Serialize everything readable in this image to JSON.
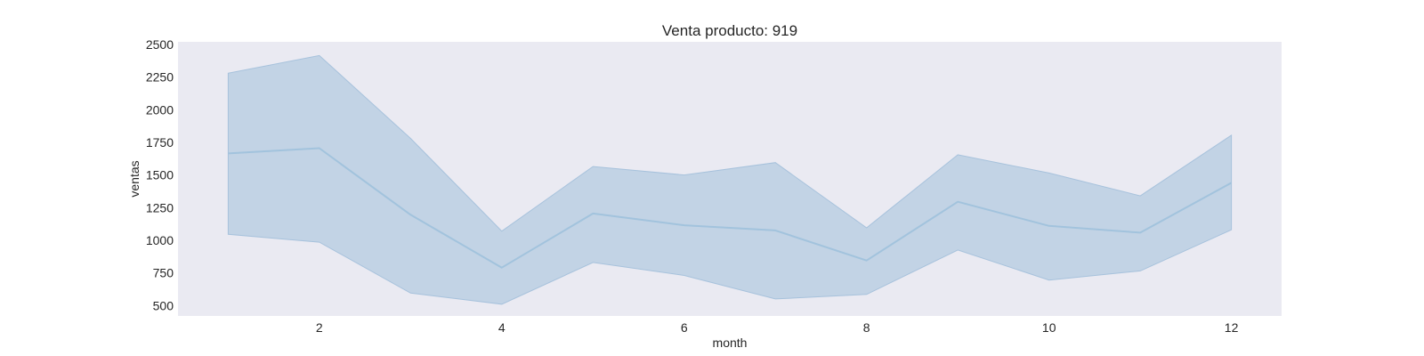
{
  "chart_data": {
    "type": "line",
    "title": "Venta producto: 919",
    "xlabel": "month",
    "ylabel": "ventas",
    "xlim": [
      0.45,
      12.55
    ],
    "ylim": [
      420,
      2520
    ],
    "xticks": [
      2,
      4,
      6,
      8,
      10,
      12
    ],
    "yticks": [
      500,
      750,
      1000,
      1250,
      1500,
      1750,
      2000,
      2250,
      2500
    ],
    "grid": false,
    "colors": {
      "plot_background": "#eaeaf2",
      "line": "#a2c3dd",
      "band_fill": "#c2d3e5",
      "band_edge": "#a7c2dc"
    },
    "series": [
      {
        "x": [
          1,
          2,
          3,
          4,
          5,
          6,
          7,
          8,
          9,
          10,
          11,
          12
        ],
        "values": [
          1665,
          1705,
          1195,
          790,
          1205,
          1115,
          1075,
          845,
          1295,
          1110,
          1058,
          1440
        ],
        "upper": [
          2280,
          2415,
          1780,
          1070,
          1565,
          1500,
          1595,
          1095,
          1655,
          1515,
          1340,
          1805
        ],
        "lower": [
          1045,
          985,
          595,
          510,
          830,
          730,
          550,
          585,
          925,
          695,
          765,
          1080
        ]
      }
    ]
  }
}
